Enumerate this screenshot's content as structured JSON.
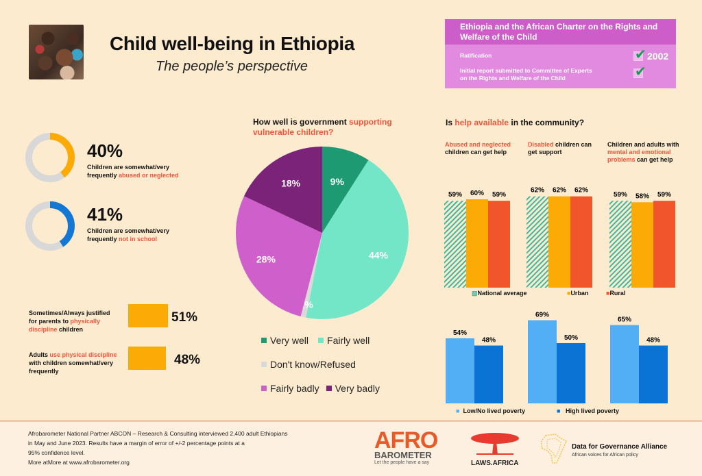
{
  "header": {
    "title": "Child well-being in Ethiopia",
    "subtitle": "The people’s perspective",
    "photo_alt": "group of smiling children"
  },
  "charter": {
    "title": "Ethiopia and the African Charter on the Rights and Welfare of the Child",
    "rows": [
      {
        "label": "Ratification",
        "checked": true,
        "value": "2002"
      },
      {
        "label_line1": "Initial report submitted to Committee of Experts",
        "label_line2": "on the Rights and Welfare of the Child",
        "checked": true,
        "value": ""
      }
    ],
    "check_glyph": "✔"
  },
  "stats": [
    {
      "value": "40%",
      "fraction": 0.4,
      "desc_plain": "Children are somewhat/very",
      "desc_plain2": "frequently ",
      "desc_accent": "abused or neglected",
      "color": "#fbaa06"
    },
    {
      "value": "41%",
      "fraction": 0.41,
      "desc_plain": "Children are somewhat/very",
      "desc_plain2": "frequently ",
      "desc_accent": "not in school",
      "color": "#1477d4"
    }
  ],
  "discipline": [
    {
      "l1": "Sometimes/Always justified",
      "l2a": "for parents to ",
      "l2b": "physically",
      "l3a": "discipline",
      "l3b": " children",
      "value": "51%",
      "pct": 51
    },
    {
      "l1a": "Adults ",
      "l1b": "use physical discipline",
      "l2": "with children somewhat/very",
      "l3": "frequently",
      "value": "48%",
      "pct": 48
    }
  ],
  "colors": {
    "accent": "#f0553a",
    "orange": "#fbaa06",
    "rural": "#f0552c",
    "teal": "#3fb8a0",
    "light_blue": "#52aef5",
    "dark_blue": "#0a73d4",
    "ring_gray": "#d8d8d8",
    "charter_head": "#cd5ec9",
    "charter_body": "#e18ae0"
  },
  "pie": {
    "title_plain": "How well is government ",
    "title_accent1": "supporting",
    "title_accent2": "vulnerable children?",
    "legend_row1": [
      "Very well",
      "Fairly well"
    ],
    "legend_row2": [
      "Don't know/Refused"
    ],
    "legend_row3": [
      "Fairly badly",
      "Very badly"
    ]
  },
  "help": {
    "title_a": "Is ",
    "title_b": "help available",
    "title_c": " in the community?",
    "groups": [
      {
        "t1_accent": "Abused and neglected",
        "t2": "children can get help"
      },
      {
        "t1_accent": "Disabled",
        "t1_rest": " children can",
        "t2": "get support"
      },
      {
        "t1": "Children and adults with",
        "t2_accent": "mental and emotional",
        "t3_accent": "problems",
        "t3_rest": " can get help"
      }
    ],
    "legend_top": [
      "National average",
      "Urban",
      "Rural"
    ],
    "legend_bottom": [
      "Low/No lived poverty",
      "High lived poverty"
    ]
  },
  "chart_data": [
    {
      "type": "pie",
      "title": "How well is government supporting vulnerable children?",
      "categories": [
        "Very well",
        "Fairly well",
        "Don't know/Refused",
        "Fairly badly",
        "Very badly"
      ],
      "values": [
        9,
        44,
        1,
        28,
        18
      ],
      "labels": [
        "9%",
        "44%",
        "1%",
        "28%",
        "18%"
      ],
      "colors": [
        "#1e9a72",
        "#74e6c8",
        "#d9d9d9",
        "#cf5fcb",
        "#7b2378"
      ],
      "legend": "bottom"
    },
    {
      "type": "bar",
      "title": "Is help available in the community? (by location)",
      "categories": [
        "Abused and neglected children can get help",
        "Disabled children can get support",
        "Children and adults with mental and emotional problems can get help"
      ],
      "series": [
        {
          "name": "National average",
          "values": [
            59,
            62,
            59
          ],
          "color": "#3fb8a0",
          "pattern": "hatched"
        },
        {
          "name": "Urban",
          "values": [
            60,
            62,
            58
          ],
          "color": "#fbaa06"
        },
        {
          "name": "Rural",
          "values": [
            59,
            62,
            59
          ],
          "color": "#f0552c"
        }
      ],
      "ylim": [
        0,
        100
      ],
      "grid": false,
      "legend": "bottom"
    },
    {
      "type": "bar",
      "title": "Is help available in the community? (by lived poverty)",
      "categories": [
        "Abused and neglected children can get help",
        "Disabled children can get support",
        "Children and adults with mental and emotional problems can get help"
      ],
      "series": [
        {
          "name": "Low/No lived poverty",
          "values": [
            54,
            69,
            65
          ],
          "color": "#52aef5"
        },
        {
          "name": "High lived poverty",
          "values": [
            48,
            50,
            48
          ],
          "color": "#0a73d4"
        }
      ],
      "ylim": [
        0,
        100
      ],
      "grid": false,
      "legend": "bottom"
    },
    {
      "type": "bar",
      "title": "Physical discipline",
      "categories": [
        "Sometimes/Always justified for parents to physically discipline children",
        "Adults use physical discipline with children somewhat/very frequently"
      ],
      "values": [
        51,
        48
      ],
      "ylim": [
        0,
        100
      ]
    },
    {
      "type": "pie",
      "title": "Children are somewhat/very frequently abused or neglected",
      "values": [
        40,
        60
      ],
      "categories": [
        "abused or neglected",
        "other"
      ]
    },
    {
      "type": "pie",
      "title": "Children are somewhat/very frequently not in school",
      "values": [
        41,
        59
      ],
      "categories": [
        "not in school",
        "other"
      ]
    }
  ],
  "footer": {
    "line1": "Afrobarometer National Partner ABCON – Research & Consulting interviewed 2,400 adult Ethiopians",
    "line2": "in May and June 2023. Results have a margin of error of +/-2 percentage points at a",
    "line3": "95% confidence level.",
    "line4": "More atMore at www.afrobarometer.org"
  },
  "logos": {
    "afro_top": "AFRO",
    "afro_mid": "BAROMETER",
    "afro_tag": "Let the people have a say",
    "laws": "LAWS.AFRICA",
    "d4g_title": "Data for Governance Alliance",
    "d4g_tag": "African voices for African policy"
  }
}
